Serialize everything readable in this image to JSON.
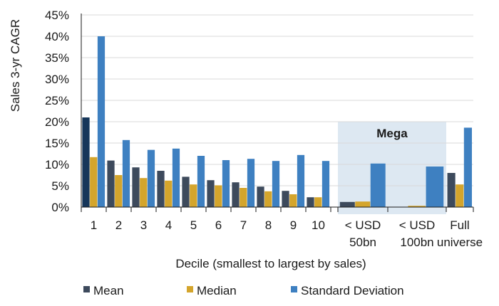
{
  "chart_data": {
    "type": "bar",
    "title": "",
    "xlabel": "Decile (smallest to largest by sales)",
    "ylabel": "Sales 3-yr CAGR",
    "ylim": [
      0,
      45
    ],
    "yticks": [
      "0%",
      "5%",
      "10%",
      "15%",
      "20%",
      "25%",
      "30%",
      "35%",
      "40%",
      "45%"
    ],
    "grid": "horizontal",
    "legend_position": "bottom",
    "categories": [
      [
        "1"
      ],
      [
        "2"
      ],
      [
        "3"
      ],
      [
        "4"
      ],
      [
        "5"
      ],
      [
        "6"
      ],
      [
        "7"
      ],
      [
        "8"
      ],
      [
        "9"
      ],
      [
        "10"
      ],
      [
        "< USD",
        "50bn"
      ],
      [
        "< USD",
        "100bn"
      ],
      [
        "Full",
        "universe"
      ]
    ],
    "series": [
      {
        "name": "Mean",
        "color": "#3d4a5c",
        "values": [
          21.0,
          10.9,
          9.3,
          8.5,
          7.1,
          6.3,
          5.8,
          4.8,
          3.8,
          2.3,
          1.2,
          0.0,
          8.0
        ]
      },
      {
        "name": "Median",
        "color": "#d4a52c",
        "values": [
          11.7,
          7.5,
          6.8,
          6.2,
          5.3,
          5.1,
          4.5,
          3.7,
          3.0,
          2.3,
          1.3,
          0.3,
          5.3
        ]
      },
      {
        "name": "Standard Deviation",
        "color": "#3e80c1",
        "values": [
          40.0,
          15.7,
          13.4,
          13.7,
          12.0,
          11.0,
          11.3,
          10.8,
          12.2,
          10.8,
          10.2,
          9.5,
          18.6
        ]
      }
    ],
    "highlight_bar": {
      "series": "Mean",
      "category_index": 0,
      "color": "#16365a"
    },
    "shaded_region": {
      "label": "Mega",
      "category_indices": [
        10,
        11
      ],
      "color": "#dde8f2"
    }
  }
}
